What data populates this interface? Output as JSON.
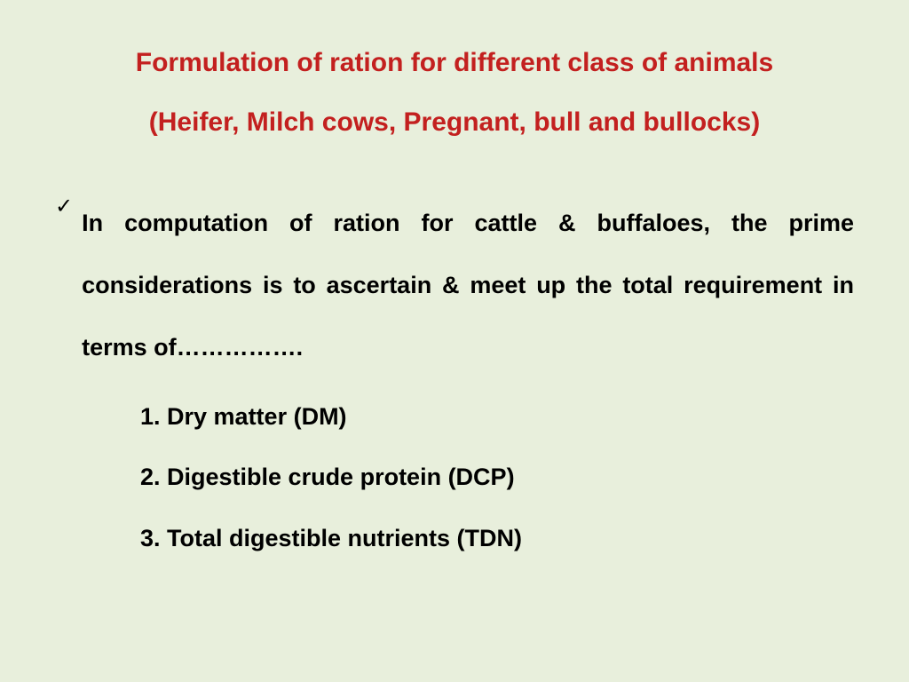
{
  "background_color": "#e8efdc",
  "title": {
    "line1": "Formulation of ration for different class of animals",
    "line2": "(Heifer, Milch cows, Pregnant, bull and bullocks)",
    "color": "#c3201f",
    "fontsize": 30,
    "weight": "bold"
  },
  "bullet": {
    "marker": "✓",
    "text": "In computation of ration for cattle & buffaloes, the prime considerations is to ascertain & meet up the total requirement in terms of…………….",
    "fontsize": 27,
    "color": "#000000",
    "weight": "bold"
  },
  "items": {
    "item1": "1. Dry matter (DM)",
    "item2": "2. Digestible crude protein (DCP)",
    "item3": "3. Total digestible nutrients (TDN)",
    "fontsize": 27,
    "color": "#000000",
    "weight": "bold"
  }
}
